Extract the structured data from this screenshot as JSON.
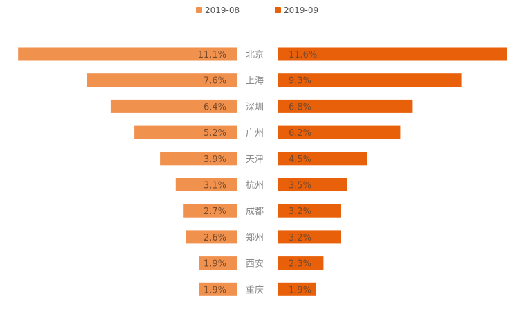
{
  "chart_data": {
    "type": "bar",
    "subtype": "butterfly",
    "categories": [
      "北京",
      "上海",
      "深圳",
      "广州",
      "天津",
      "杭州",
      "成都",
      "郑州",
      "西安",
      "重庆"
    ],
    "series": [
      {
        "name": "2019-08",
        "color": "#f0914e",
        "side": "left",
        "values": [
          11.1,
          7.6,
          6.4,
          5.2,
          3.9,
          3.1,
          2.7,
          2.6,
          1.9,
          1.9
        ],
        "labels": [
          "11.1%",
          "7.6%",
          "6.4%",
          "5.2%",
          "3.9%",
          "3.1%",
          "2.7%",
          "2.6%",
          "1.9%",
          "1.9%"
        ]
      },
      {
        "name": "2019-09",
        "color": "#e8600a",
        "side": "right",
        "values": [
          11.6,
          9.3,
          6.8,
          6.2,
          4.5,
          3.5,
          3.2,
          3.2,
          2.3,
          1.9
        ],
        "labels": [
          "11.6%",
          "9.3%",
          "6.8%",
          "6.2%",
          "4.5%",
          "3.5%",
          "3.2%",
          "3.2%",
          "2.3%",
          "1.9%"
        ]
      }
    ],
    "title": "",
    "xlabel": "",
    "ylabel": "",
    "value_unit": "%",
    "legend_position": "top-center",
    "grid": false
  }
}
